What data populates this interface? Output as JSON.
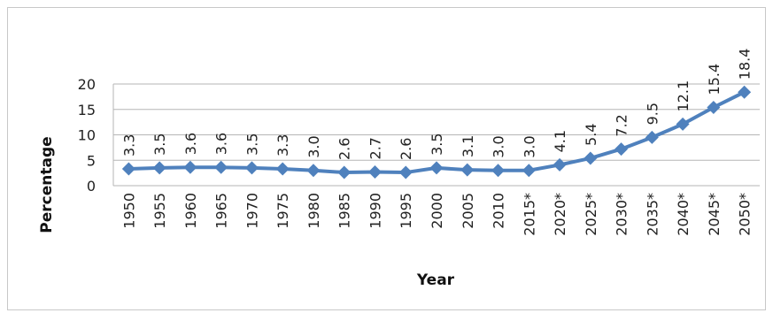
{
  "chart_data": {
    "type": "line",
    "title": "",
    "xlabel": "Year",
    "ylabel": "Percentage",
    "ylim": [
      0,
      20
    ],
    "yticks": [
      0,
      5,
      10,
      15,
      20
    ],
    "grid": true,
    "categories": [
      "1950",
      "1955",
      "1960",
      "1965",
      "1970",
      "1975",
      "1980",
      "1985",
      "1990",
      "1995",
      "2000",
      "2005",
      "2010",
      "2015*",
      "2020*",
      "2025*",
      "2030*",
      "2035*",
      "2040*",
      "2045*",
      "2050*"
    ],
    "values": [
      3.3,
      3.5,
      3.6,
      3.6,
      3.5,
      3.3,
      3.0,
      2.6,
      2.7,
      2.6,
      3.5,
      3.1,
      3.0,
      3.0,
      4.1,
      5.4,
      7.2,
      9.5,
      12.1,
      15.4,
      18.4
    ],
    "data_labels": [
      "3.3",
      "3.5",
      "3.6",
      "3.6",
      "3.5",
      "3.3",
      "3.0",
      "2.6",
      "2.7",
      "2.6",
      "3.5",
      "3.1",
      "3.0",
      "3.0",
      "4.1",
      "5.4",
      "7.2",
      "9.5",
      "12.1",
      "15.4",
      "18.4"
    ],
    "series_color": "#4f81bd",
    "marker": "diamond"
  }
}
